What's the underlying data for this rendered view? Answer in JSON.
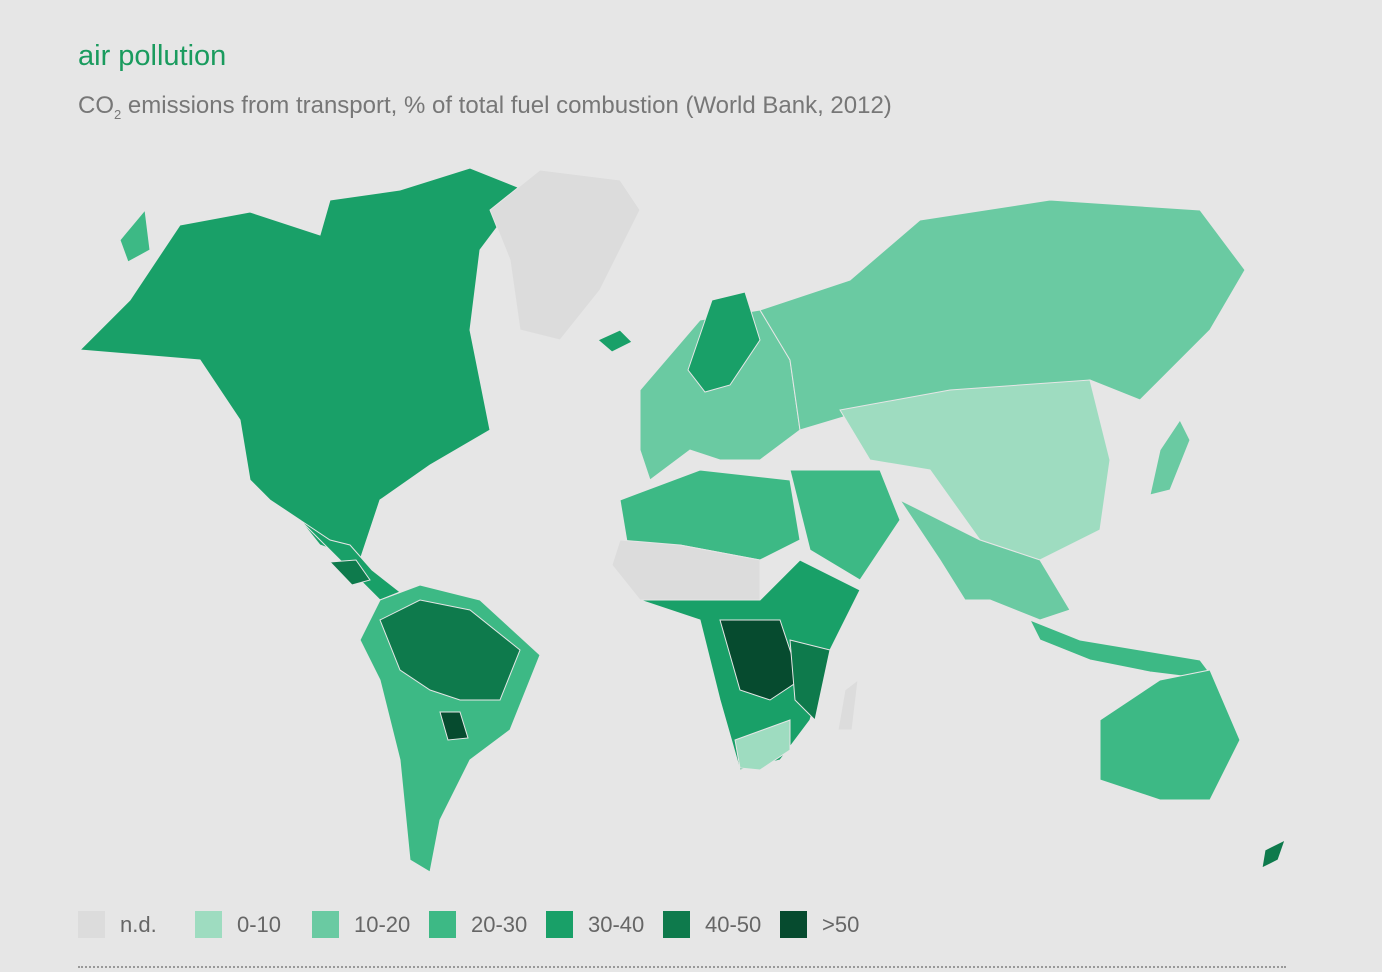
{
  "header": {
    "title": "air pollution",
    "subtitle": {
      "prefix": "CO",
      "subscript": "2",
      "text": " emissions from transport, % of total fuel combustion (World Bank, 2012)"
    }
  },
  "legend": {
    "items": [
      {
        "label": "n.d.",
        "color": "#dcdcdc"
      },
      {
        "label": "0-10",
        "color": "#9edcc0"
      },
      {
        "label": "10-20",
        "color": "#6acaa2"
      },
      {
        "label": "20-30",
        "color": "#3db985"
      },
      {
        "label": "30-40",
        "color": "#19a068"
      },
      {
        "label": "40-50",
        "color": "#0e7a4c"
      },
      {
        "label": ">50",
        "color": "#064b2f"
      }
    ]
  }
}
